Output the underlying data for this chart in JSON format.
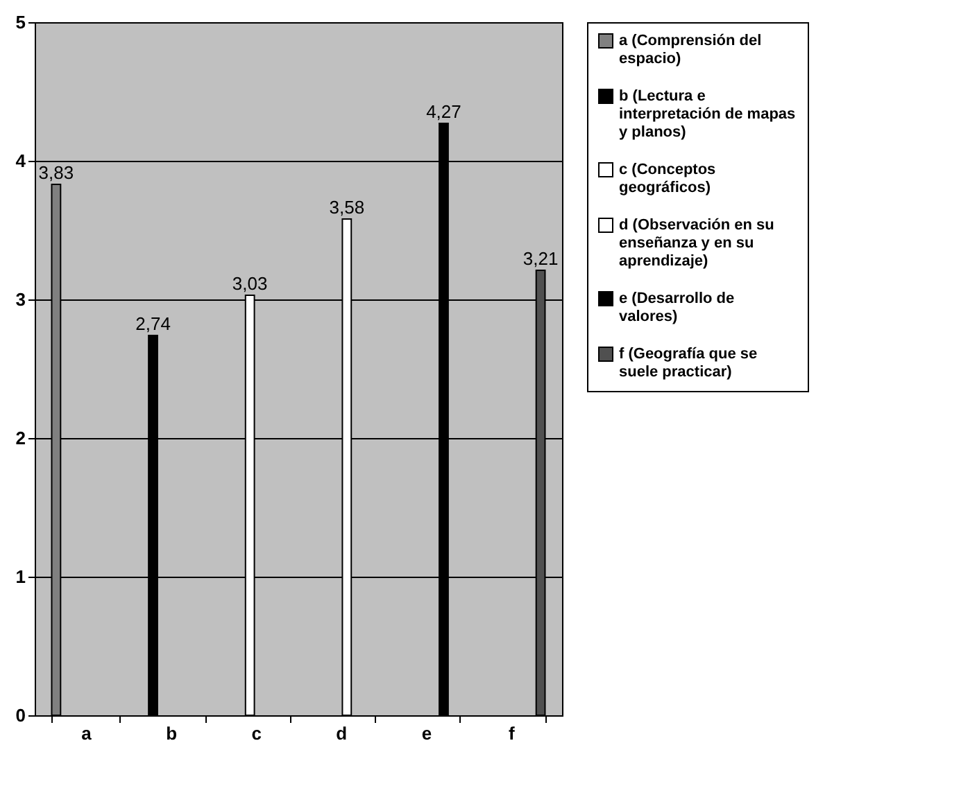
{
  "chart_data": {
    "type": "bar",
    "categories": [
      "a",
      "b",
      "c",
      "d",
      "e",
      "f"
    ],
    "series": [
      {
        "name": "a (Comprensión del espacio)",
        "color": "#808080",
        "values": [
          3.83,
          null,
          null,
          null,
          null,
          null
        ],
        "value_labels": [
          "3,83",
          null,
          null,
          null,
          null,
          null
        ]
      },
      {
        "name": "b (Lectura e interpretación de mapas y planos)",
        "color": "#000000",
        "values": [
          null,
          2.74,
          null,
          null,
          null,
          null
        ],
        "value_labels": [
          null,
          "2,74",
          null,
          null,
          null,
          null
        ]
      },
      {
        "name": "c (Conceptos geográficos)",
        "color": "#ffffff",
        "values": [
          null,
          null,
          3.03,
          null,
          null,
          null
        ],
        "value_labels": [
          null,
          null,
          "3,03",
          null,
          null,
          null
        ]
      },
      {
        "name": "d (Observación en su enseñanza y en su aprendizaje)",
        "color": "#ffffff",
        "values": [
          null,
          null,
          null,
          3.58,
          null,
          null
        ],
        "value_labels": [
          null,
          null,
          null,
          "3,58",
          null,
          null
        ]
      },
      {
        "name": "e (Desarrollo de valores)",
        "color": "#000000",
        "values": [
          null,
          null,
          null,
          null,
          4.27,
          null
        ],
        "value_labels": [
          null,
          null,
          null,
          null,
          "4,27",
          null
        ]
      },
      {
        "name": "f (Geografía que se suele practicar)",
        "color": "#505050",
        "values": [
          null,
          null,
          null,
          null,
          null,
          3.21
        ],
        "value_labels": [
          null,
          null,
          null,
          null,
          null,
          "3,21"
        ]
      }
    ],
    "ylim": [
      0,
      5
    ],
    "yticks": [
      0,
      1,
      2,
      3,
      4,
      5
    ],
    "grid": "y",
    "legend": "right"
  }
}
